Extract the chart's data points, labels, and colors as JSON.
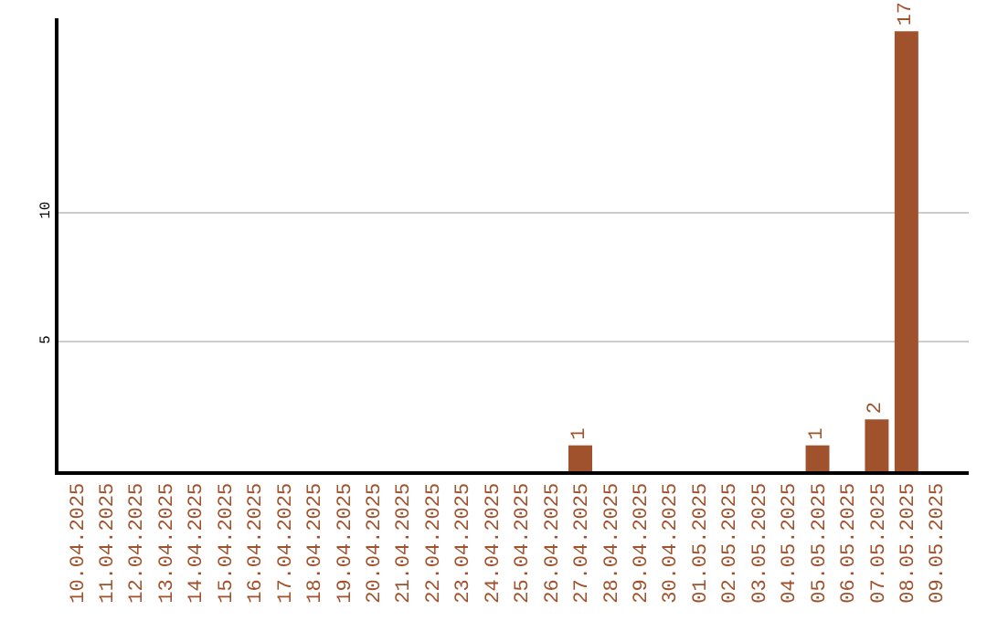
{
  "chart_data": {
    "type": "bar",
    "categories": [
      "10.04.2025",
      "11.04.2025",
      "12.04.2025",
      "13.04.2025",
      "14.04.2025",
      "15.04.2025",
      "16.04.2025",
      "17.04.2025",
      "18.04.2025",
      "19.04.2025",
      "20.04.2025",
      "21.04.2025",
      "22.04.2025",
      "23.04.2025",
      "24.04.2025",
      "25.04.2025",
      "26.04.2025",
      "27.04.2025",
      "28.04.2025",
      "29.04.2025",
      "30.04.2025",
      "01.05.2025",
      "02.05.2025",
      "03.05.2025",
      "04.05.2025",
      "05.05.2025",
      "06.05.2025",
      "07.05.2025",
      "08.05.2025",
      "09.05.2025"
    ],
    "values": [
      0,
      0,
      0,
      0,
      0,
      0,
      0,
      0,
      0,
      0,
      0,
      0,
      0,
      0,
      0,
      0,
      0,
      1,
      0,
      0,
      0,
      0,
      0,
      0,
      0,
      1,
      0,
      2,
      17,
      0
    ],
    "value_labels": [
      null,
      null,
      null,
      null,
      null,
      null,
      null,
      null,
      null,
      null,
      null,
      null,
      null,
      null,
      null,
      null,
      null,
      "1",
      null,
      null,
      null,
      null,
      null,
      null,
      null,
      "1",
      null,
      "2",
      "17",
      null
    ],
    "color": "#a0522d",
    "ylim": [
      0,
      17.5
    ],
    "yticks": [
      5,
      10
    ],
    "grid": "y"
  }
}
